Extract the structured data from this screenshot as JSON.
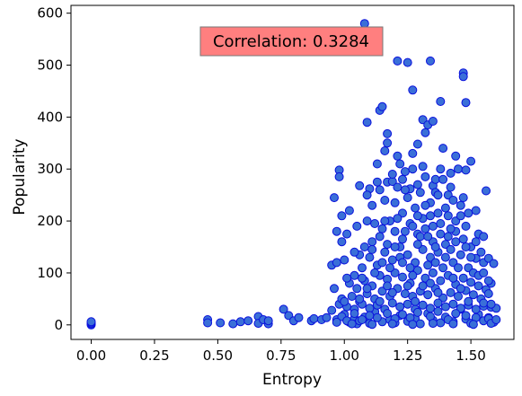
{
  "chart_data": {
    "type": "scatter",
    "xlabel": "Entropy",
    "ylabel": "Popularity",
    "xlim": [
      -0.08,
      1.67
    ],
    "ylim": [
      -28,
      615
    ],
    "x_ticks": [
      0.0,
      0.25,
      0.5,
      0.75,
      1.0,
      1.25,
      1.5
    ],
    "x_tick_labels": [
      "0.00",
      "0.25",
      "0.50",
      "0.75",
      "1.00",
      "1.25",
      "1.50"
    ],
    "y_ticks": [
      0,
      100,
      200,
      300,
      400,
      500,
      600
    ],
    "y_tick_labels": [
      "0",
      "100",
      "200",
      "300",
      "400",
      "500",
      "600"
    ],
    "annotation": "Correlation: 0.3284",
    "annotation_bg": "#ff7f7f",
    "point_face_color": "#3a6fd8",
    "point_edge_color": "#0a10dd",
    "grid": false,
    "legend": "none",
    "points": [
      [
        0.0,
        0
      ],
      [
        0.0,
        2
      ],
      [
        0.0,
        4
      ],
      [
        0.0,
        6
      ],
      [
        0.46,
        10
      ],
      [
        0.46,
        4
      ],
      [
        0.51,
        4
      ],
      [
        0.56,
        2
      ],
      [
        0.59,
        6
      ],
      [
        0.62,
        8
      ],
      [
        0.66,
        16
      ],
      [
        0.66,
        3
      ],
      [
        0.68,
        10
      ],
      [
        0.7,
        2
      ],
      [
        0.7,
        8
      ],
      [
        0.76,
        30
      ],
      [
        0.78,
        18
      ],
      [
        0.8,
        8
      ],
      [
        0.82,
        14
      ],
      [
        0.87,
        8
      ],
      [
        0.88,
        12
      ],
      [
        0.91,
        10
      ],
      [
        0.93,
        14
      ],
      [
        0.95,
        28
      ],
      [
        0.96,
        70
      ],
      [
        0.97,
        10
      ],
      [
        0.98,
        40
      ],
      [
        1.0,
        20
      ],
      [
        1.02,
        5
      ],
      [
        1.04,
        12
      ],
      [
        1.05,
        2
      ],
      [
        1.06,
        8
      ],
      [
        1.08,
        15
      ],
      [
        1.1,
        3
      ],
      [
        1.12,
        25
      ],
      [
        1.15,
        6
      ],
      [
        1.18,
        10
      ],
      [
        1.2,
        4
      ],
      [
        1.22,
        18
      ],
      [
        1.25,
        7
      ],
      [
        1.28,
        12
      ],
      [
        1.3,
        2
      ],
      [
        1.33,
        22
      ],
      [
        1.35,
        9
      ],
      [
        1.38,
        4
      ],
      [
        1.4,
        15
      ],
      [
        1.43,
        6
      ],
      [
        1.46,
        30
      ],
      [
        1.48,
        11
      ],
      [
        1.5,
        3
      ],
      [
        1.53,
        20
      ],
      [
        1.55,
        8
      ],
      [
        1.57,
        14
      ],
      [
        1.59,
        5
      ],
      [
        1.08,
        580
      ],
      [
        1.21,
        508
      ],
      [
        1.25,
        505
      ],
      [
        1.34,
        508
      ],
      [
        1.47,
        485
      ],
      [
        1.47,
        478
      ],
      [
        1.27,
        452
      ],
      [
        1.48,
        428
      ],
      [
        1.38,
        430
      ],
      [
        1.14,
        413
      ],
      [
        1.15,
        420
      ],
      [
        1.09,
        390
      ],
      [
        1.31,
        395
      ],
      [
        1.33,
        385
      ],
      [
        1.35,
        392
      ],
      [
        1.32,
        370
      ],
      [
        1.17,
        368
      ],
      [
        1.17,
        350
      ],
      [
        1.16,
        335
      ],
      [
        1.29,
        348
      ],
      [
        1.39,
        340
      ],
      [
        1.44,
        325
      ],
      [
        1.21,
        325
      ],
      [
        1.22,
        310
      ],
      [
        1.27,
        300
      ],
      [
        1.24,
        295
      ],
      [
        1.31,
        305
      ],
      [
        1.38,
        300
      ],
      [
        1.45,
        300
      ],
      [
        1.48,
        298
      ],
      [
        1.5,
        315
      ],
      [
        1.42,
        292
      ],
      [
        0.98,
        298
      ],
      [
        0.98,
        285
      ],
      [
        1.06,
        268
      ],
      [
        1.1,
        262
      ],
      [
        1.13,
        275
      ],
      [
        1.17,
        275
      ],
      [
        1.19,
        276
      ],
      [
        1.21,
        265
      ],
      [
        1.26,
        262
      ],
      [
        1.29,
        270
      ],
      [
        1.32,
        285
      ],
      [
        1.35,
        268
      ],
      [
        1.36,
        255
      ],
      [
        1.41,
        250
      ],
      [
        1.56,
        258
      ],
      [
        0.96,
        245
      ],
      [
        1.02,
        220
      ],
      [
        0.99,
        210
      ],
      [
        1.09,
        200
      ],
      [
        1.12,
        195
      ],
      [
        1.15,
        185
      ],
      [
        1.18,
        200
      ],
      [
        1.2,
        235
      ],
      [
        1.23,
        215
      ],
      [
        1.25,
        245
      ],
      [
        1.28,
        225
      ],
      [
        1.31,
        205
      ],
      [
        1.34,
        235
      ],
      [
        1.37,
        215
      ],
      [
        1.4,
        225
      ],
      [
        1.43,
        240
      ],
      [
        1.46,
        230
      ],
      [
        1.49,
        215
      ],
      [
        1.52,
        220
      ],
      [
        0.97,
        180
      ],
      [
        1.01,
        175
      ],
      [
        1.06,
        135
      ],
      [
        1.08,
        150
      ],
      [
        1.11,
        160
      ],
      [
        1.14,
        170
      ],
      [
        1.17,
        155
      ],
      [
        1.2,
        180
      ],
      [
        1.23,
        165
      ],
      [
        1.26,
        195
      ],
      [
        1.29,
        175
      ],
      [
        1.32,
        185
      ],
      [
        1.35,
        160
      ],
      [
        1.38,
        195
      ],
      [
        1.41,
        170
      ],
      [
        1.44,
        180
      ],
      [
        1.47,
        165
      ],
      [
        1.5,
        150
      ],
      [
        1.53,
        175
      ],
      [
        1.55,
        170
      ],
      [
        0.95,
        115
      ],
      [
        0.97,
        120
      ],
      [
        1.0,
        125
      ],
      [
        1.04,
        95
      ],
      [
        1.07,
        110
      ],
      [
        1.1,
        130
      ],
      [
        1.13,
        115
      ],
      [
        1.16,
        140
      ],
      [
        1.19,
        125
      ],
      [
        1.22,
        150
      ],
      [
        1.25,
        135
      ],
      [
        1.28,
        120
      ],
      [
        1.31,
        145
      ],
      [
        1.34,
        130
      ],
      [
        1.37,
        140
      ],
      [
        1.4,
        155
      ],
      [
        1.43,
        120
      ],
      [
        1.46,
        135
      ],
      [
        1.49,
        110
      ],
      [
        1.52,
        128
      ],
      [
        1.55,
        120
      ],
      [
        1.57,
        128
      ],
      [
        1.59,
        118
      ],
      [
        1.02,
        80
      ],
      [
        1.05,
        70
      ],
      [
        1.08,
        85
      ],
      [
        1.11,
        75
      ],
      [
        1.14,
        95
      ],
      [
        1.17,
        88
      ],
      [
        1.2,
        100
      ],
      [
        1.23,
        92
      ],
      [
        1.26,
        80
      ],
      [
        1.29,
        105
      ],
      [
        1.32,
        90
      ],
      [
        1.35,
        100
      ],
      [
        1.38,
        85
      ],
      [
        1.41,
        95
      ],
      [
        1.44,
        78
      ],
      [
        1.47,
        90
      ],
      [
        1.5,
        82
      ],
      [
        1.53,
        75
      ],
      [
        1.56,
        68
      ],
      [
        1.58,
        80
      ],
      [
        0.99,
        50
      ],
      [
        1.03,
        55
      ],
      [
        1.06,
        45
      ],
      [
        1.09,
        60
      ],
      [
        1.12,
        50
      ],
      [
        1.15,
        65
      ],
      [
        1.18,
        55
      ],
      [
        1.21,
        70
      ],
      [
        1.24,
        60
      ],
      [
        1.27,
        55
      ],
      [
        1.3,
        65
      ],
      [
        1.33,
        58
      ],
      [
        1.36,
        70
      ],
      [
        1.39,
        52
      ],
      [
        1.42,
        62
      ],
      [
        1.45,
        55
      ],
      [
        1.48,
        66
      ],
      [
        1.51,
        58
      ],
      [
        1.54,
        50
      ],
      [
        1.57,
        60
      ],
      [
        1.01,
        35
      ],
      [
        1.04,
        30
      ],
      [
        1.07,
        40
      ],
      [
        1.1,
        32
      ],
      [
        1.13,
        38
      ],
      [
        1.16,
        30
      ],
      [
        1.19,
        42
      ],
      [
        1.22,
        35
      ],
      [
        1.25,
        40
      ],
      [
        1.28,
        30
      ],
      [
        1.31,
        38
      ],
      [
        1.34,
        32
      ],
      [
        1.37,
        42
      ],
      [
        1.4,
        35
      ],
      [
        1.43,
        40
      ],
      [
        1.46,
        32
      ],
      [
        1.49,
        38
      ],
      [
        1.52,
        30
      ],
      [
        1.55,
        36
      ],
      [
        1.58,
        34
      ],
      [
        1.6,
        32
      ],
      [
        1.13,
        310
      ],
      [
        1.24,
        260
      ],
      [
        1.3,
        255
      ],
      [
        1.36,
        280
      ],
      [
        1.42,
        265
      ],
      [
        1.27,
        330
      ],
      [
        1.19,
        290
      ],
      [
        1.44,
        200
      ],
      [
        1.24,
        180
      ],
      [
        1.37,
        250
      ],
      [
        1.32,
        230
      ],
      [
        1.41,
        210
      ],
      [
        1.47,
        245
      ],
      [
        1.21,
        205
      ],
      [
        1.16,
        240
      ],
      [
        1.11,
        230
      ],
      [
        1.05,
        190
      ],
      [
        1.29,
        155
      ],
      [
        1.35,
        190
      ],
      [
        1.48,
        190
      ],
      [
        1.52,
        160
      ],
      [
        1.54,
        140
      ],
      [
        1.51,
        100
      ],
      [
        1.45,
        110
      ],
      [
        1.33,
        115
      ],
      [
        1.18,
        110
      ],
      [
        1.12,
        100
      ],
      [
        1.07,
        90
      ],
      [
        1.01,
        90
      ],
      [
        1.4,
        130
      ],
      [
        1.26,
        110
      ],
      [
        1.22,
        130
      ],
      [
        1.15,
        120
      ],
      [
        1.36,
        120
      ],
      [
        1.42,
        145
      ],
      [
        1.48,
        150
      ],
      [
        1.3,
        170
      ],
      [
        1.38,
        175
      ],
      [
        1.2,
        150
      ],
      [
        1.11,
        145
      ],
      [
        1.44,
        160
      ],
      [
        1.23,
        120
      ],
      [
        1.27,
        95
      ],
      [
        1.34,
        80
      ],
      [
        1.43,
        90
      ],
      [
        1.39,
        110
      ],
      [
        1.31,
        75
      ],
      [
        1.17,
        75
      ],
      [
        1.09,
        70
      ],
      [
        1.46,
        70
      ],
      [
        1.53,
        95
      ],
      [
        1.25,
        75
      ],
      [
        1.19,
        62
      ],
      [
        1.37,
        62
      ],
      [
        1.49,
        45
      ],
      [
        1.28,
        45
      ],
      [
        1.14,
        45
      ],
      [
        1.06,
        50
      ],
      [
        1.0,
        45
      ],
      [
        1.55,
        42
      ],
      [
        1.44,
        22
      ],
      [
        1.37,
        26
      ],
      [
        1.29,
        24
      ],
      [
        1.23,
        20
      ],
      [
        1.17,
        22
      ],
      [
        1.1,
        18
      ],
      [
        1.04,
        22
      ],
      [
        0.99,
        16
      ],
      [
        1.52,
        14
      ],
      [
        1.57,
        12
      ],
      [
        1.48,
        18
      ],
      [
        1.41,
        10
      ],
      [
        1.34,
        16
      ],
      [
        1.26,
        14
      ],
      [
        1.2,
        12
      ],
      [
        1.13,
        14
      ],
      [
        1.07,
        10
      ],
      [
        1.01,
        8
      ],
      [
        0.97,
        5
      ],
      [
        1.03,
        2
      ],
      [
        1.11,
        1
      ],
      [
        1.19,
        2
      ],
      [
        1.27,
        1
      ],
      [
        1.35,
        3
      ],
      [
        1.43,
        2
      ],
      [
        1.51,
        1
      ],
      [
        1.58,
        3
      ],
      [
        1.14,
        260
      ],
      [
        1.09,
        250
      ],
      [
        1.04,
        140
      ],
      [
        0.99,
        160
      ],
      [
        1.23,
        280
      ],
      [
        1.39,
        280
      ],
      [
        1.34,
        210
      ],
      [
        1.46,
        210
      ],
      [
        1.29,
        210
      ],
      [
        1.27,
        190
      ],
      [
        1.33,
        170
      ],
      [
        1.42,
        185
      ],
      [
        1.36,
        150
      ],
      [
        1.5,
        130
      ],
      [
        1.16,
        200
      ],
      [
        1.55,
        100
      ],
      [
        1.57,
        85
      ],
      [
        1.58,
        40
      ],
      [
        1.6,
        10
      ]
    ]
  }
}
